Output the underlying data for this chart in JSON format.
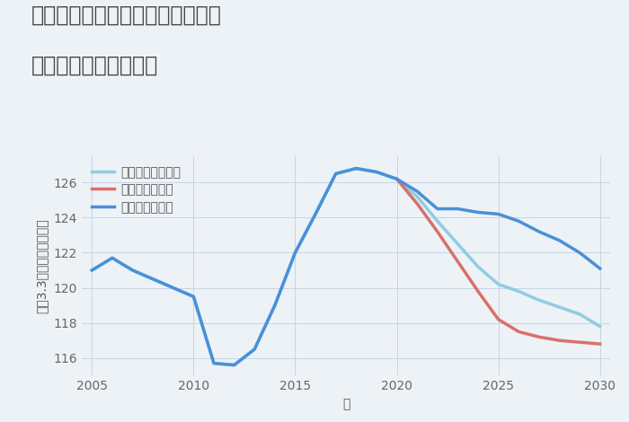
{
  "title_line1": "神奈川県横浜市港北区北新横浜の",
  "title_line2": "中古戸建ての価格推移",
  "xlabel": "年",
  "ylabel": "坪（3.3㎡）単価（万円）",
  "background_color": "#edf2f7",
  "plot_background": "#edf2f7",
  "good_scenario": {
    "label": "グッドシナリオ",
    "color": "#4a90d9",
    "years": [
      2005,
      2006,
      2007,
      2008,
      2009,
      2010,
      2011,
      2012,
      2013,
      2014,
      2015,
      2016,
      2017,
      2018,
      2019,
      2020,
      2021,
      2022,
      2023,
      2024,
      2025,
      2026,
      2027,
      2028,
      2029,
      2030
    ],
    "values": [
      121.0,
      121.7,
      121.0,
      120.5,
      120.0,
      119.5,
      115.7,
      115.6,
      116.5,
      119.0,
      122.0,
      124.2,
      126.5,
      126.8,
      126.6,
      126.2,
      125.5,
      124.5,
      124.5,
      124.3,
      124.2,
      123.8,
      123.2,
      122.7,
      122.0,
      121.1
    ]
  },
  "bad_scenario": {
    "label": "バッドシナリオ",
    "color": "#d9706a",
    "years": [
      2020,
      2021,
      2022,
      2023,
      2024,
      2025,
      2026,
      2027,
      2028,
      2029,
      2030
    ],
    "values": [
      126.2,
      124.8,
      123.2,
      121.5,
      119.8,
      118.2,
      117.5,
      117.2,
      117.0,
      116.9,
      116.8
    ]
  },
  "normal_scenario": {
    "label": "ノーマルシナリオ",
    "color": "#90cde0",
    "years": [
      2005,
      2006,
      2007,
      2008,
      2009,
      2010,
      2011,
      2012,
      2013,
      2014,
      2015,
      2016,
      2017,
      2018,
      2019,
      2020,
      2021,
      2022,
      2023,
      2024,
      2025,
      2026,
      2027,
      2028,
      2029,
      2030
    ],
    "values": [
      121.0,
      121.7,
      121.0,
      120.5,
      120.0,
      119.5,
      115.7,
      115.6,
      116.5,
      119.0,
      122.0,
      124.2,
      126.5,
      126.8,
      126.6,
      126.2,
      125.2,
      123.8,
      122.5,
      121.2,
      120.2,
      119.8,
      119.3,
      118.9,
      118.5,
      117.8
    ]
  },
  "ylim": [
    115.0,
    127.5
  ],
  "yticks": [
    116,
    118,
    120,
    122,
    124,
    126
  ],
  "xticks": [
    2005,
    2010,
    2015,
    2020,
    2025,
    2030
  ],
  "grid_color": "#c5d5e5",
  "title_fontsize": 17,
  "axis_fontsize": 10,
  "legend_fontsize": 10,
  "tick_fontsize": 10
}
